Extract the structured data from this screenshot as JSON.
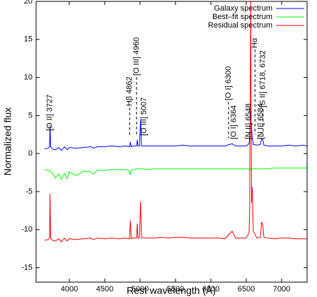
{
  "chart_data": {
    "type": "line",
    "xlabel": "Rest wavelength (Å)",
    "ylabel": "Normalized flux",
    "xlim": [
      3530,
      7360
    ],
    "ylim": [
      -16.9,
      20
    ],
    "xticks": [
      4000,
      4500,
      5000,
      5500,
      6000,
      6500,
      7000
    ],
    "yticks": [
      -15,
      -10,
      -5,
      0,
      5,
      10,
      15,
      20
    ],
    "legend": "top-right",
    "x": [
      3650,
      3700,
      3720,
      3727,
      3735,
      3760,
      3800,
      3850,
      3890,
      3930,
      3970,
      4000,
      4100,
      4200,
      4300,
      4340,
      4400,
      4500,
      4600,
      4700,
      4800,
      4850,
      4862,
      4875,
      4900,
      4950,
      4960,
      4970,
      4990,
      5007,
      5020,
      5100,
      5200,
      5300,
      5400,
      5500,
      5600,
      5700,
      5800,
      5900,
      6000,
      6100,
      6200,
      6300,
      6350,
      6400,
      6500,
      6540,
      6548,
      6563,
      6575,
      6584,
      6600,
      6650,
      6700,
      6718,
      6732,
      6750,
      6800,
      6900,
      7000,
      7100,
      7200,
      7300,
      7360
    ],
    "series": [
      {
        "name": "Galaxy spectrum",
        "color": "#0000ff",
        "values": [
          0.6,
          0.7,
          0.9,
          3.7,
          0.9,
          0.6,
          0.5,
          0.8,
          0.4,
          0.9,
          0.5,
          0.8,
          0.7,
          0.8,
          0.9,
          0.7,
          0.9,
          0.9,
          1.0,
          0.9,
          1.0,
          0.9,
          1.5,
          0.9,
          1.0,
          1.0,
          1.8,
          1.0,
          1.0,
          4.5,
          1.0,
          1.0,
          1.0,
          1.0,
          1.0,
          1.0,
          1.1,
          1.0,
          1.0,
          1.0,
          1.0,
          1.0,
          1.0,
          1.3,
          1.0,
          1.0,
          1.0,
          1.3,
          2.0,
          5.7,
          3.5,
          2.2,
          1.2,
          1.1,
          1.2,
          2.0,
          1.9,
          1.1,
          1.0,
          1.0,
          1.0,
          1.1,
          1.0,
          1.1,
          1.0
        ]
      },
      {
        "name": "Best–fit spectrum",
        "color": "#00ff00",
        "values": [
          -2.2,
          -2.2,
          -2.3,
          -2.3,
          -2.3,
          -2.6,
          -3.2,
          -2.7,
          -3.4,
          -2.6,
          -3.3,
          -2.4,
          -2.9,
          -2.3,
          -2.4,
          -2.7,
          -2.2,
          -2.2,
          -2.1,
          -2.1,
          -2.1,
          -2.3,
          -2.8,
          -2.2,
          -2.1,
          -2.0,
          -2.0,
          -2.0,
          -2.0,
          -2.0,
          -2.0,
          -2.1,
          -2.0,
          -2.0,
          -2.0,
          -2.0,
          -2.0,
          -2.0,
          -2.0,
          -2.0,
          -2.0,
          -2.0,
          -2.0,
          -2.0,
          -2.0,
          -2.0,
          -2.0,
          -2.0,
          -2.0,
          -2.1,
          -2.0,
          -2.0,
          -2.0,
          -2.0,
          -2.0,
          -2.0,
          -2.0,
          -2.0,
          -2.0,
          -1.9,
          -1.9,
          -1.9,
          -1.9,
          -1.9,
          -1.9
        ]
      },
      {
        "name": "Residual spectrum",
        "color": "#ff0000",
        "values": [
          -11.4,
          -11.3,
          -11.1,
          -5.3,
          -11.1,
          -11.4,
          -11.5,
          -11.2,
          -11.6,
          -11.1,
          -11.5,
          -11.2,
          -11.3,
          -11.2,
          -11.1,
          -11.3,
          -11.1,
          -11.2,
          -11.1,
          -11.2,
          -11.1,
          -11.2,
          -8.8,
          -11.2,
          -11.1,
          -11.1,
          -9.2,
          -11.1,
          -11.1,
          -6.3,
          -11.1,
          -11.1,
          -11.1,
          -11.0,
          -11.1,
          -11.0,
          -11.0,
          -11.1,
          -11.1,
          -11.1,
          -11.1,
          -11.1,
          -11.2,
          -10.2,
          -11.1,
          -11.1,
          -11.1,
          -10.4,
          -7.5,
          20,
          -6.5,
          -4.4,
          -10.2,
          -11.1,
          -11.0,
          -9.0,
          -9.3,
          -11.0,
          -11.1,
          -11.2,
          -11.1,
          -11.1,
          -11.2,
          -11.2,
          -11.2
        ]
      }
    ],
    "annotations": [
      {
        "text": "[O II] 3727",
        "x": 3727
      },
      {
        "text": "Hβ 4862",
        "x": 4862
      },
      {
        "text": "[O III] 4960",
        "x": 4960
      },
      {
        "text": "[O III] 5007",
        "x": 5007
      },
      {
        "text": "[O I] 6300",
        "x": 6300
      },
      {
        "text": "[O I] 6364",
        "x": 6364
      },
      {
        "text": "[N II] 6548",
        "x": 6548
      },
      {
        "text": "Hα",
        "x": 6563
      },
      {
        "text": "[N II] 6584",
        "x": 6584
      },
      {
        "text": "[S II] 6718, 6732",
        "x": 6718
      }
    ]
  }
}
